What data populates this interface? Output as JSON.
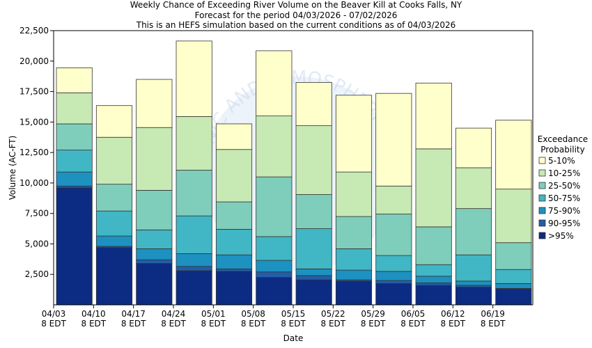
{
  "titles": [
    "Weekly Chance of Exceeding River Volume on the Beaver Kill at Cooks Falls, NY",
    "Forecast for the period 04/03/2026 - 07/02/2026",
    "This is an HEFS simulation based on the current conditions as of 04/03/2026"
  ],
  "watermark": "NATIONAL OCEANIC AND ATMOSPHERIC ADMINISTRATION",
  "colors": {
    "5-10%": "#ffffcc",
    "10-25%": "#c7e9b4",
    "25-50%": "#7fcdbb",
    "50-75%": "#41b6c4",
    "75-90%": "#1d91c0",
    "90-95%": "#225ea8",
    ">95%": "#0c2c84"
  },
  "chart_data": {
    "type": "bar",
    "stacked": true,
    "title": "Weekly Chance of Exceeding River Volume on the Beaver Kill at Cooks Falls, NY",
    "xlabel": "Date",
    "ylabel": "Volume (AC-FT)",
    "ylim": [
      0,
      22500
    ],
    "yticks": [
      2500,
      5000,
      7500,
      10000,
      12500,
      15000,
      17500,
      20000,
      22500
    ],
    "ytick_labels": [
      "2,500",
      "5,000",
      "7,500",
      "10,000",
      "12,500",
      "15,000",
      "17,500",
      "20,000",
      "22,500"
    ],
    "xtick_labels": [
      [
        "04/03",
        "8 EDT"
      ],
      [
        "04/10",
        "8 EDT"
      ],
      [
        "04/17",
        "8 EDT"
      ],
      [
        "04/24",
        "8 EDT"
      ],
      [
        "05/01",
        "8 EDT"
      ],
      [
        "05/08",
        "8 EDT"
      ],
      [
        "05/15",
        "8 EDT"
      ],
      [
        "05/22",
        "8 EDT"
      ],
      [
        "05/29",
        "8 EDT"
      ],
      [
        "06/05",
        "8 EDT"
      ],
      [
        "06/12",
        "8 EDT"
      ],
      [
        "06/19",
        "8 EDT"
      ]
    ],
    "grid": false,
    "legend": {
      "title": [
        "Exceedance",
        "Probability"
      ],
      "placement": "right",
      "entries": [
        "5-10%",
        "10-25%",
        "25-50%",
        "50-75%",
        "75-90%",
        "90-95%",
        ">95%"
      ]
    },
    "bar_tops": {
      "note_levels_are_cumulative_boundaries_from_bottom": true,
      "levels": [
        "min",
        ">95%",
        "90-95%",
        "75-90%",
        "50-75%",
        "25-50%",
        "10-25%",
        "5-10%"
      ]
    },
    "weeks": [
      {
        "start": "04/03",
        "bounds": [
          0,
          9600,
          9750,
          10900,
          12700,
          14850,
          17400,
          19450
        ]
      },
      {
        "start": "04/10",
        "bounds": [
          0,
          4700,
          4800,
          5650,
          7700,
          9900,
          13750,
          16350
        ]
      },
      {
        "start": "04/17",
        "bounds": [
          0,
          3400,
          3700,
          4600,
          6150,
          9400,
          14550,
          18500
        ]
      },
      {
        "start": "04/24",
        "bounds": [
          0,
          2800,
          3150,
          4200,
          7300,
          11050,
          15450,
          21650
        ]
      },
      {
        "start": "05/01",
        "bounds": [
          0,
          2750,
          2950,
          4100,
          6200,
          8450,
          12750,
          14850
        ]
      },
      {
        "start": "05/08",
        "bounds": [
          0,
          2250,
          2700,
          3650,
          5600,
          10500,
          15500,
          20850
        ]
      },
      {
        "start": "05/15",
        "bounds": [
          0,
          2050,
          2400,
          2950,
          6250,
          9050,
          14700,
          18250
        ]
      },
      {
        "start": "05/22",
        "bounds": [
          0,
          1950,
          2050,
          2850,
          4600,
          7250,
          10900,
          17200
        ]
      },
      {
        "start": "05/29",
        "bounds": [
          0,
          1750,
          2000,
          2750,
          4050,
          7450,
          9750,
          17350
        ]
      },
      {
        "start": "06/05",
        "bounds": [
          0,
          1600,
          1800,
          2350,
          3300,
          6400,
          12800,
          18200
        ]
      },
      {
        "start": "06/12",
        "bounds": [
          0,
          1450,
          1600,
          1950,
          4100,
          7900,
          11250,
          14500
        ]
      },
      {
        "start": "06/19",
        "bounds": [
          0,
          1300,
          1350,
          1750,
          2900,
          5100,
          9500,
          15150
        ]
      }
    ]
  }
}
